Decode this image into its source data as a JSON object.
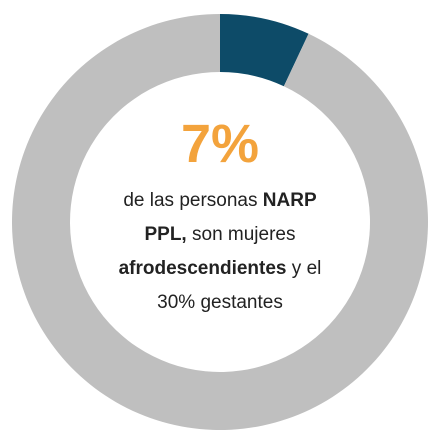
{
  "chart_data": {
    "type": "donut",
    "values": [
      7,
      93
    ],
    "value_labels": [
      "7%",
      null
    ],
    "colors": [
      "#0d4b68",
      "#bfbfbf"
    ],
    "label_color": "#f3a33c",
    "annotation": [
      {
        "text": "de las personas ",
        "bold": false
      },
      {
        "text": "NARP PPL,",
        "bold": true
      },
      {
        "text": " son mujeres ",
        "bold": false
      },
      {
        "text": "afrodescendientes",
        "bold": true
      },
      {
        "text": " y el 30% gestantes",
        "bold": false
      }
    ]
  }
}
